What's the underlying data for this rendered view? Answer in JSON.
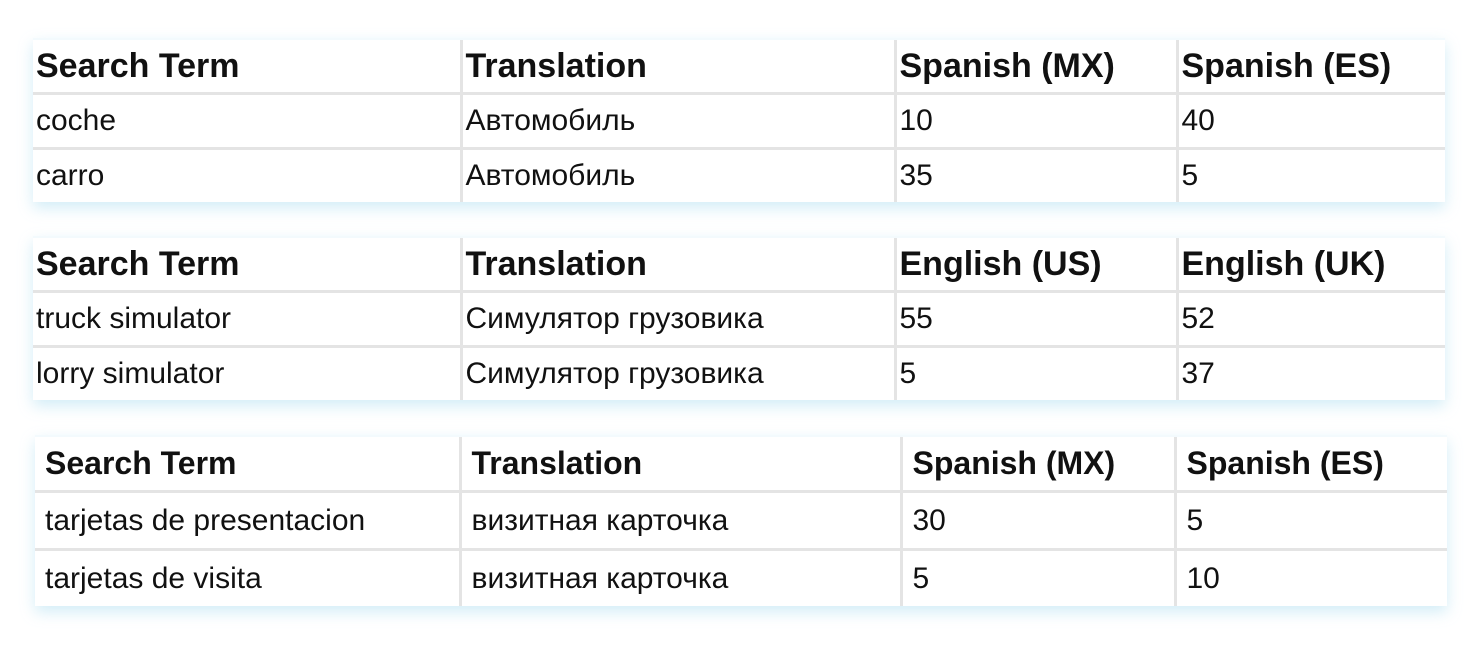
{
  "tables": [
    {
      "headers": [
        "Search Term",
        "Translation",
        "Spanish (MX)",
        "Spanish (ES)"
      ],
      "rows": [
        [
          "coche",
          "Автомобиль",
          "10",
          "40"
        ],
        [
          "carro",
          "Автомобиль",
          "35",
          "5"
        ]
      ]
    },
    {
      "headers": [
        "Search Term",
        "Translation",
        "English (US)",
        "English (UK)"
      ],
      "rows": [
        [
          "truck simulator",
          "Симулятор грузовика",
          "55",
          "52"
        ],
        [
          "lorry simulator",
          "Симулятор грузовика",
          "5",
          "37"
        ]
      ]
    },
    {
      "headers": [
        "Search Term",
        "Translation",
        "Spanish (MX)",
        "Spanish (ES)"
      ],
      "rows": [
        [
          "tarjetas de presentacion",
          "визитная карточка",
          "30",
          "5"
        ],
        [
          "tarjetas de visita",
          "визитная карточка",
          "5",
          "10"
        ]
      ]
    }
  ]
}
